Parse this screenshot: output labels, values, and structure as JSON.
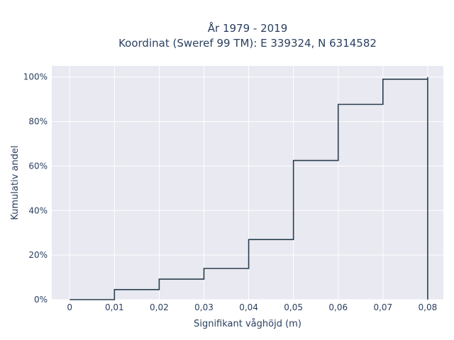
{
  "chart_data": {
    "type": "line",
    "step": true,
    "title_line1": "År 1979 - 2019",
    "title_line2": "Koordinat (Sweref 99 TM): E 339324, N 6314582",
    "xlabel": "Signifikant våghöjd (m)",
    "ylabel": "Kumulativ andel",
    "xlim": [
      -0.004,
      0.0835
    ],
    "ylim": [
      0,
      1.05
    ],
    "x_ticks": [
      0,
      0.01,
      0.02,
      0.03,
      0.04,
      0.05,
      0.06,
      0.07,
      0.08
    ],
    "x_tick_labels": [
      "0",
      "0,01",
      "0,02",
      "0,03",
      "0,04",
      "0,05",
      "0,06",
      "0,07",
      "0,08"
    ],
    "y_ticks": [
      0,
      0.2,
      0.4,
      0.6,
      0.8,
      1.0
    ],
    "y_tick_labels": [
      "0%",
      "20%",
      "40%",
      "60%",
      "80%",
      "100%"
    ],
    "grid": true,
    "series": [
      {
        "x": [
          0,
          0.01,
          0.02,
          0.03,
          0.04,
          0.05,
          0.06,
          0.07,
          0.08
        ],
        "y": [
          0.0,
          0.045,
          0.092,
          0.14,
          0.27,
          0.625,
          0.877,
          0.99,
          1.0
        ]
      }
    ],
    "colors": {
      "line": "#2a3f4f",
      "plot_bg": "#e8e9f1",
      "grid": "#ffffff",
      "text": "#2a3f5f"
    }
  }
}
